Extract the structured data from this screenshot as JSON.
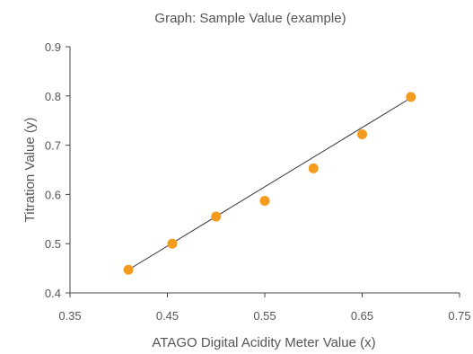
{
  "chart_data": {
    "type": "scatter",
    "title": "Graph: Sample Value (example)",
    "xlabel": "ATAGO Digital Acidity Meter Value (x)",
    "ylabel": "Titration Value (y)",
    "xlim": [
      0.35,
      0.75
    ],
    "ylim": [
      0.4,
      0.9
    ],
    "x_ticks": [
      "0.35",
      "0.45",
      "0.55",
      "0.65",
      "0.75"
    ],
    "y_ticks": [
      "0.4",
      "0.5",
      "0.6",
      "0.7",
      "0.8",
      "0.9"
    ],
    "grid": false,
    "point_color": "#f39c1e",
    "line_color": "#333333",
    "series": [
      {
        "x": [
          0.41,
          0.455,
          0.5,
          0.55,
          0.6,
          0.65,
          0.7
        ],
        "y": [
          0.447,
          0.5,
          0.555,
          0.587,
          0.653,
          0.722,
          0.798
        ]
      }
    ],
    "trendline": {
      "x": [
        0.41,
        0.7
      ],
      "y": [
        0.447,
        0.796
      ]
    }
  }
}
